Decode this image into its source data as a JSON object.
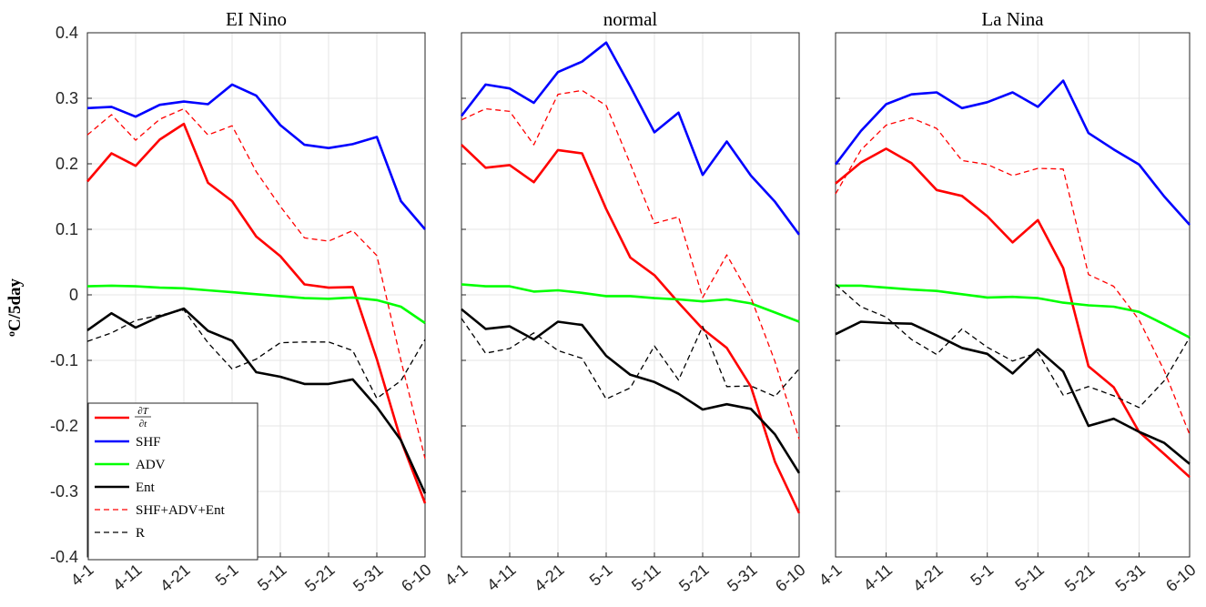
{
  "figure": {
    "ylabel": "°C/5day",
    "ylabel_superscript": "o",
    "ylabel_unit": "C/5day"
  },
  "legend": {
    "placement": "bottom-left",
    "entries": [
      {
        "label": "∂T/∂t",
        "numerator": "∂T",
        "denominator": "∂t",
        "color": "#ff0000",
        "style": "solid"
      },
      {
        "label": "SHF",
        "color": "#0000ff",
        "style": "solid"
      },
      {
        "label": "ADV",
        "color": "#00ff00",
        "style": "solid"
      },
      {
        "label": "Ent",
        "color": "#000000",
        "style": "solid"
      },
      {
        "label": "SHF+ADV+Ent",
        "color": "#ff0000",
        "style": "dashed"
      },
      {
        "label": "R",
        "color": "#000000",
        "style": "dashed"
      }
    ]
  },
  "chart_data": [
    {
      "type": "line",
      "title": "EI Nino",
      "x": [
        "4-1",
        "4-6",
        "4-11",
        "4-16",
        "4-21",
        "4-26",
        "5-1",
        "5-6",
        "5-11",
        "5-16",
        "5-21",
        "5-26",
        "5-31",
        "6-5",
        "6-10"
      ],
      "xticks": [
        "4-1",
        "4-11",
        "4-21",
        "5-1",
        "5-11",
        "5-21",
        "5-31",
        "6-10"
      ],
      "ylim": [
        -0.4,
        0.4
      ],
      "yticks": [
        0.4,
        0.3,
        0.2,
        0.1,
        0,
        -0.1,
        -0.2,
        -0.3,
        -0.4
      ],
      "grid": true,
      "series": [
        {
          "name": "∂T/∂t",
          "color": "#ff0000",
          "style": "solid",
          "values": [
            0.173,
            0.216,
            0.197,
            0.237,
            0.261,
            0.171,
            0.143,
            0.089,
            0.059,
            0.016,
            0.011,
            0.012,
            -0.098,
            -0.222,
            -0.318
          ]
        },
        {
          "name": "SHF",
          "color": "#0000ff",
          "style": "solid",
          "values": [
            0.285,
            0.287,
            0.272,
            0.29,
            0.295,
            0.291,
            0.321,
            0.304,
            0.259,
            0.229,
            0.224,
            0.23,
            0.241,
            0.143,
            0.1
          ]
        },
        {
          "name": "ADV",
          "color": "#00ff00",
          "style": "solid",
          "values": [
            0.013,
            0.014,
            0.013,
            0.011,
            0.01,
            0.007,
            0.004,
            0.001,
            -0.002,
            -0.005,
            -0.006,
            -0.004,
            -0.008,
            -0.018,
            -0.043
          ]
        },
        {
          "name": "Ent",
          "color": "#000000",
          "style": "solid",
          "values": [
            -0.054,
            -0.028,
            -0.05,
            -0.033,
            -0.021,
            -0.055,
            -0.07,
            -0.118,
            -0.125,
            -0.136,
            -0.136,
            -0.129,
            -0.171,
            -0.222,
            -0.303
          ]
        },
        {
          "name": "SHF+ADV+Ent",
          "color": "#ff0000",
          "style": "dashed",
          "values": [
            0.244,
            0.275,
            0.236,
            0.268,
            0.284,
            0.244,
            0.258,
            0.188,
            0.135,
            0.087,
            0.082,
            0.098,
            0.06,
            -0.1,
            -0.25
          ]
        },
        {
          "name": "R",
          "color": "#000000",
          "style": "dashed",
          "values": [
            -0.071,
            -0.058,
            -0.039,
            -0.031,
            -0.023,
            -0.073,
            -0.113,
            -0.098,
            -0.073,
            -0.072,
            -0.072,
            -0.085,
            -0.158,
            -0.131,
            -0.068
          ]
        }
      ]
    },
    {
      "type": "line",
      "title": "normal",
      "x": [
        "4-1",
        "4-6",
        "4-11",
        "4-16",
        "4-21",
        "4-26",
        "5-1",
        "5-6",
        "5-11",
        "5-16",
        "5-21",
        "5-26",
        "5-31",
        "6-5",
        "6-10"
      ],
      "xticks": [
        "4-1",
        "4-11",
        "4-21",
        "5-1",
        "5-11",
        "5-21",
        "5-31",
        "6-10"
      ],
      "ylim": [
        -0.4,
        0.4
      ],
      "grid": true,
      "series": [
        {
          "name": "∂T/∂t",
          "color": "#ff0000",
          "style": "solid",
          "values": [
            0.229,
            0.194,
            0.198,
            0.172,
            0.221,
            0.216,
            0.131,
            0.057,
            0.03,
            -0.012,
            -0.052,
            -0.081,
            -0.14,
            -0.255,
            -0.333
          ]
        },
        {
          "name": "SHF",
          "color": "#0000ff",
          "style": "solid",
          "values": [
            0.273,
            0.321,
            0.315,
            0.293,
            0.34,
            0.356,
            0.385,
            0.318,
            0.248,
            0.278,
            0.183,
            0.234,
            0.182,
            0.142,
            0.092
          ]
        },
        {
          "name": "ADV",
          "color": "#00ff00",
          "style": "solid",
          "values": [
            0.016,
            0.013,
            0.013,
            0.005,
            0.007,
            0.003,
            -0.002,
            -0.002,
            -0.005,
            -0.007,
            -0.01,
            -0.007,
            -0.013,
            -0.027,
            -0.041
          ]
        },
        {
          "name": "Ent",
          "color": "#000000",
          "style": "solid",
          "values": [
            -0.022,
            -0.052,
            -0.048,
            -0.068,
            -0.041,
            -0.046,
            -0.093,
            -0.122,
            -0.133,
            -0.151,
            -0.175,
            -0.167,
            -0.174,
            -0.213,
            -0.272
          ]
        },
        {
          "name": "SHF+ADV+Ent",
          "color": "#ff0000",
          "style": "dashed",
          "values": [
            0.267,
            0.284,
            0.28,
            0.229,
            0.306,
            0.312,
            0.289,
            0.2,
            0.109,
            0.119,
            -0.004,
            0.061,
            -0.004,
            -0.102,
            -0.22
          ]
        },
        {
          "name": "R",
          "color": "#000000",
          "style": "dashed",
          "values": [
            -0.036,
            -0.089,
            -0.082,
            -0.058,
            -0.085,
            -0.097,
            -0.159,
            -0.142,
            -0.078,
            -0.13,
            -0.048,
            -0.14,
            -0.139,
            -0.155,
            -0.113
          ]
        }
      ]
    },
    {
      "type": "line",
      "title": "La Nina",
      "x": [
        "4-1",
        "4-6",
        "4-11",
        "4-16",
        "4-21",
        "4-26",
        "5-1",
        "5-6",
        "5-11",
        "5-16",
        "5-21",
        "5-26",
        "5-31",
        "6-5",
        "6-10"
      ],
      "xticks": [
        "4-1",
        "4-11",
        "4-21",
        "5-1",
        "5-11",
        "5-21",
        "5-31",
        "6-10"
      ],
      "ylim": [
        -0.4,
        0.4
      ],
      "grid": true,
      "series": [
        {
          "name": "∂T/∂t",
          "color": "#ff0000",
          "style": "solid",
          "values": [
            0.17,
            0.202,
            0.223,
            0.201,
            0.16,
            0.151,
            0.12,
            0.08,
            0.114,
            0.041,
            -0.109,
            -0.141,
            -0.209,
            -0.243,
            -0.278
          ]
        },
        {
          "name": "SHF",
          "color": "#0000ff",
          "style": "solid",
          "values": [
            0.199,
            0.25,
            0.291,
            0.306,
            0.309,
            0.285,
            0.294,
            0.309,
            0.287,
            0.327,
            0.247,
            0.222,
            0.199,
            0.15,
            0.107
          ]
        },
        {
          "name": "ADV",
          "color": "#00ff00",
          "style": "solid",
          "values": [
            0.014,
            0.014,
            0.011,
            0.008,
            0.006,
            0.001,
            -0.004,
            -0.003,
            -0.005,
            -0.012,
            -0.016,
            -0.018,
            -0.026,
            -0.045,
            -0.065
          ]
        },
        {
          "name": "Ent",
          "color": "#000000",
          "style": "solid",
          "values": [
            -0.06,
            -0.041,
            -0.043,
            -0.044,
            -0.062,
            -0.081,
            -0.09,
            -0.12,
            -0.083,
            -0.117,
            -0.2,
            -0.189,
            -0.209,
            -0.226,
            -0.258
          ]
        },
        {
          "name": "SHF+ADV+Ent",
          "color": "#ff0000",
          "style": "dashed",
          "values": [
            0.154,
            0.221,
            0.259,
            0.27,
            0.254,
            0.205,
            0.199,
            0.182,
            0.193,
            0.192,
            0.031,
            0.013,
            -0.038,
            -0.116,
            -0.213
          ]
        },
        {
          "name": "R",
          "color": "#000000",
          "style": "dashed",
          "values": [
            0.016,
            -0.018,
            -0.034,
            -0.068,
            -0.091,
            -0.052,
            -0.08,
            -0.101,
            -0.088,
            -0.153,
            -0.14,
            -0.154,
            -0.172,
            -0.131,
            -0.065
          ]
        }
      ]
    }
  ]
}
